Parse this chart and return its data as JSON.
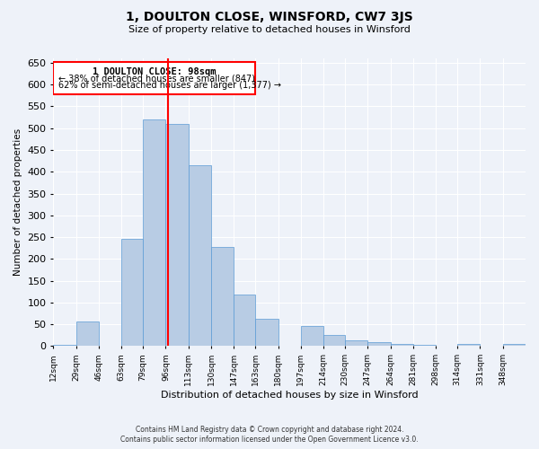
{
  "title": "1, DOULTON CLOSE, WINSFORD, CW7 3JS",
  "subtitle": "Size of property relative to detached houses in Winsford",
  "xlabel": "Distribution of detached houses by size in Winsford",
  "ylabel": "Number of detached properties",
  "bin_edges": [
    12,
    29,
    46,
    63,
    79,
    96,
    113,
    130,
    147,
    163,
    180,
    197,
    214,
    230,
    247,
    264,
    281,
    298,
    314,
    331,
    348,
    365
  ],
  "bin_labels": [
    "12sqm",
    "29sqm",
    "46sqm",
    "63sqm",
    "79sqm",
    "96sqm",
    "113sqm",
    "130sqm",
    "147sqm",
    "163sqm",
    "180sqm",
    "197sqm",
    "214sqm",
    "230sqm",
    "247sqm",
    "264sqm",
    "281sqm",
    "298sqm",
    "314sqm",
    "331sqm",
    "348sqm"
  ],
  "counts": [
    2,
    57,
    0,
    247,
    519,
    510,
    415,
    228,
    118,
    63,
    0,
    47,
    25,
    13,
    10,
    5,
    2,
    0,
    5,
    0,
    5
  ],
  "bar_color": "#b8cce4",
  "bar_edge_color": "#5b9bd5",
  "property_line_x": 98,
  "property_line_color": "red",
  "annotation_title": "1 DOULTON CLOSE: 98sqm",
  "annotation_line1": "← 38% of detached houses are smaller (847)",
  "annotation_line2": "62% of semi-detached houses are larger (1,377) →",
  "ylim": [
    0,
    660
  ],
  "yticks": [
    0,
    50,
    100,
    150,
    200,
    250,
    300,
    350,
    400,
    450,
    500,
    550,
    600,
    650
  ],
  "background_color": "#eef2f9",
  "grid_color": "#ffffff",
  "footer_line1": "Contains HM Land Registry data © Crown copyright and database right 2024.",
  "footer_line2": "Contains public sector information licensed under the Open Government Licence v3.0."
}
